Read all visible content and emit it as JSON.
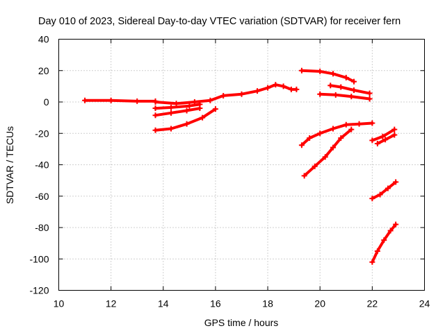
{
  "chart_data": {
    "type": "scatter",
    "title": "Day 010 of 2023, Sidereal Day-to-day VTEC variation (SDTVAR) for receiver fern",
    "xlabel": "GPS time / hours",
    "ylabel": "SDTVAR / TECUs",
    "xlim": [
      10,
      24
    ],
    "ylim": [
      -120,
      40
    ],
    "xticks": [
      10,
      12,
      14,
      16,
      18,
      20,
      22,
      24
    ],
    "yticks": [
      -120,
      -100,
      -80,
      -60,
      -40,
      -20,
      0,
      20,
      40
    ],
    "grid": true,
    "marker": "+",
    "color": "#ff0000",
    "series": [
      {
        "x": [
          11.0,
          12.0,
          13.0,
          13.7
        ],
        "y": [
          1,
          1,
          0.5,
          0.5
        ]
      },
      {
        "x": [
          13.7,
          14.5,
          15.2,
          15.8,
          16.3,
          17.0,
          17.6,
          18.0,
          18.3,
          18.6,
          18.9,
          19.1
        ],
        "y": [
          0,
          -1,
          0,
          1,
          4,
          5,
          7,
          9,
          11,
          10,
          8,
          8
        ]
      },
      {
        "x": [
          13.7,
          14.3,
          15.0,
          15.4
        ],
        "y": [
          -4,
          -3.5,
          -2.5,
          -1.5
        ]
      },
      {
        "x": [
          13.7,
          14.3,
          14.9,
          15.4
        ],
        "y": [
          -8.5,
          -7,
          -5.5,
          -4
        ]
      },
      {
        "x": [
          13.7,
          14.3,
          14.9,
          15.5,
          16.0
        ],
        "y": [
          -18,
          -17,
          -14,
          -10,
          -4.5
        ]
      },
      {
        "x": [
          19.3,
          20.0,
          20.5,
          21.0,
          21.3
        ],
        "y": [
          20,
          19.5,
          18,
          15.5,
          13
        ]
      },
      {
        "x": [
          20.0,
          20.6,
          21.2,
          21.9
        ],
        "y": [
          5,
          4.5,
          3.5,
          2
        ]
      },
      {
        "x": [
          20.4,
          20.8,
          21.3,
          21.9
        ],
        "y": [
          10.5,
          9.5,
          7.5,
          5.5
        ]
      },
      {
        "x": [
          19.3,
          19.6,
          20.0,
          20.5,
          21.0,
          21.5,
          22.0
        ],
        "y": [
          -27.5,
          -23,
          -20,
          -17,
          -14.5,
          -14,
          -13.5
        ]
      },
      {
        "x": [
          19.4,
          19.8,
          20.2,
          20.5,
          20.8,
          21.2
        ],
        "y": [
          -47,
          -41,
          -35,
          -29,
          -23,
          -17.5
        ]
      },
      {
        "x": [
          22.0,
          22.4,
          22.85
        ],
        "y": [
          -24.5,
          -22,
          -17.5
        ]
      },
      {
        "x": [
          22.2,
          22.5,
          22.85
        ],
        "y": [
          -26.5,
          -24,
          -21
        ]
      },
      {
        "x": [
          22.0,
          22.3,
          22.6,
          22.9
        ],
        "y": [
          -61.5,
          -59,
          -55,
          -51
        ]
      },
      {
        "x": [
          22.0,
          22.2,
          22.45,
          22.7,
          22.9
        ],
        "y": [
          -102,
          -95,
          -88,
          -82,
          -78
        ]
      }
    ]
  }
}
